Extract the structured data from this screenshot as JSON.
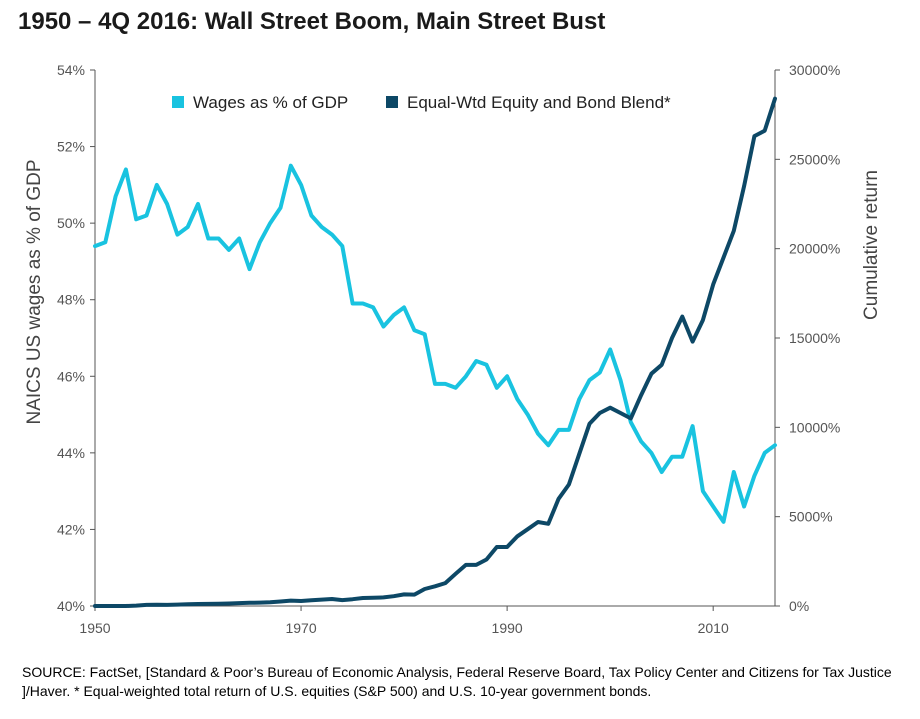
{
  "title": "1950 – 4Q 2016: Wall Street Boom, Main Street Bust",
  "source": "SOURCE: FactSet, [Standard & Poor’s Bureau of Economic Analysis, Federal Reserve Board, Tax Policy Center and Citizens for Tax Justice ]/Haver. * Equal-weighted total return of U.S. equities (S&P 500) and U.S. 10-year government bonds.",
  "colors": {
    "wages": "#19c3e0",
    "blend": "#0d4866",
    "axis": "#555555"
  },
  "chart_data": {
    "type": "line",
    "ylabel_left": "NAICS US wages as % of GDP",
    "ylabel_right": "Cumulative return",
    "xlim": [
      1950,
      2016
    ],
    "ylim_left": [
      40,
      54
    ],
    "ylim_right": [
      0,
      30000
    ],
    "x_ticks": [
      "1950",
      "1970",
      "1990",
      "2010"
    ],
    "x_tick_values": [
      1950,
      1970,
      1990,
      2010
    ],
    "y_ticks_left": [
      "40%",
      "42%",
      "44%",
      "46%",
      "48%",
      "50%",
      "52%",
      "54%"
    ],
    "y_tick_values_left": [
      40,
      42,
      44,
      46,
      48,
      50,
      52,
      54
    ],
    "y_ticks_right": [
      "0%",
      "5000%",
      "10000%",
      "15000%",
      "20000%",
      "25000%",
      "30000%"
    ],
    "y_tick_values_right": [
      0,
      5000,
      10000,
      15000,
      20000,
      25000,
      30000
    ],
    "legend": {
      "placement": "top-center",
      "entries": [
        "Wages as % of GDP",
        "Equal-Wtd Equity and Bond Blend*"
      ]
    },
    "series": [
      {
        "name": "Wages as % of GDP",
        "axis": "left",
        "x": [
          1950,
          1951,
          1952,
          1953,
          1954,
          1955,
          1956,
          1957,
          1958,
          1959,
          1960,
          1961,
          1962,
          1963,
          1964,
          1965,
          1966,
          1967,
          1968,
          1969,
          1970,
          1971,
          1972,
          1973,
          1974,
          1975,
          1976,
          1977,
          1978,
          1979,
          1980,
          1981,
          1982,
          1983,
          1984,
          1985,
          1986,
          1987,
          1988,
          1989,
          1990,
          1991,
          1992,
          1993,
          1994,
          1995,
          1996,
          1997,
          1998,
          1999,
          2000,
          2001,
          2002,
          2003,
          2004,
          2005,
          2006,
          2007,
          2008,
          2009,
          2010,
          2011,
          2012,
          2013,
          2014,
          2015,
          2016
        ],
        "values": [
          49.4,
          49.5,
          50.7,
          51.4,
          50.1,
          50.2,
          51.0,
          50.5,
          49.7,
          49.9,
          50.5,
          49.6,
          49.6,
          49.3,
          49.6,
          48.8,
          49.5,
          50.0,
          50.4,
          51.5,
          51.0,
          50.2,
          49.9,
          49.7,
          49.4,
          47.9,
          47.9,
          47.8,
          47.3,
          47.6,
          47.8,
          47.2,
          47.1,
          45.8,
          45.8,
          45.7,
          46.0,
          46.4,
          46.3,
          45.7,
          46.0,
          45.4,
          45.0,
          44.5,
          44.2,
          44.6,
          44.6,
          45.4,
          45.9,
          46.1,
          46.7,
          45.9,
          44.8,
          44.3,
          44.0,
          43.5,
          43.9,
          43.9,
          44.7,
          43.0,
          42.6,
          42.2,
          43.5,
          42.6,
          43.4,
          44.0,
          44.2
        ]
      },
      {
        "name": "Equal-Wtd Equity and Bond Blend*",
        "axis": "right",
        "x": [
          1950,
          1951,
          1952,
          1953,
          1954,
          1955,
          1956,
          1957,
          1958,
          1959,
          1960,
          1961,
          1962,
          1963,
          1964,
          1965,
          1966,
          1967,
          1968,
          1969,
          1970,
          1971,
          1972,
          1973,
          1974,
          1975,
          1976,
          1977,
          1978,
          1979,
          1980,
          1981,
          1982,
          1983,
          1984,
          1985,
          1986,
          1987,
          1988,
          1989,
          1990,
          1991,
          1992,
          1993,
          1994,
          1995,
          1996,
          1997,
          1998,
          1999,
          2000,
          2001,
          2002,
          2003,
          2004,
          2005,
          2006,
          2007,
          2008,
          2009,
          2010,
          2011,
          2012,
          2013,
          2014,
          2015,
          2016
        ],
        "values": [
          0,
          0,
          0,
          0,
          20,
          60,
          70,
          60,
          80,
          100,
          110,
          120,
          130,
          140,
          160,
          180,
          190,
          210,
          250,
          300,
          280,
          320,
          360,
          390,
          330,
          380,
          450,
          460,
          480,
          550,
          650,
          640,
          950,
          1100,
          1280,
          1800,
          2300,
          2300,
          2600,
          3300,
          3300,
          3900,
          4300,
          4700,
          4600,
          6000,
          6800,
          8500,
          10200,
          10800,
          11100,
          10800,
          10500,
          11800,
          13000,
          13500,
          15000,
          16200,
          14800,
          16000,
          18000,
          19500,
          21000,
          23500,
          26300,
          26600,
          28400
        ]
      }
    ]
  }
}
